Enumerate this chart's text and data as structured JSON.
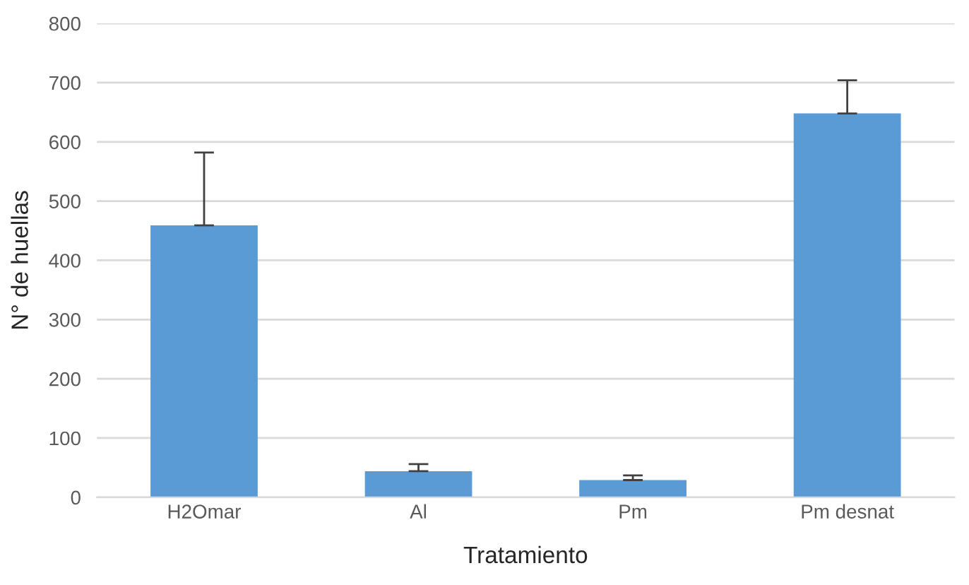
{
  "chart_data": {
    "type": "bar",
    "xlabel": "Tratamiento",
    "ylabel": "N° de huellas",
    "categories": [
      "H2Omar",
      "Al",
      "Pm",
      "Pm desnat"
    ],
    "values": [
      459,
      44,
      29,
      648
    ],
    "errors": [
      [
        459,
        582
      ],
      [
        44,
        56
      ],
      [
        29,
        37
      ],
      [
        648,
        704
      ]
    ],
    "color": "#5b9bd5",
    "ylim": [
      0,
      800
    ],
    "yticks": [
      0,
      100,
      200,
      300,
      400,
      500,
      600,
      700,
      800
    ],
    "grid": "y"
  }
}
